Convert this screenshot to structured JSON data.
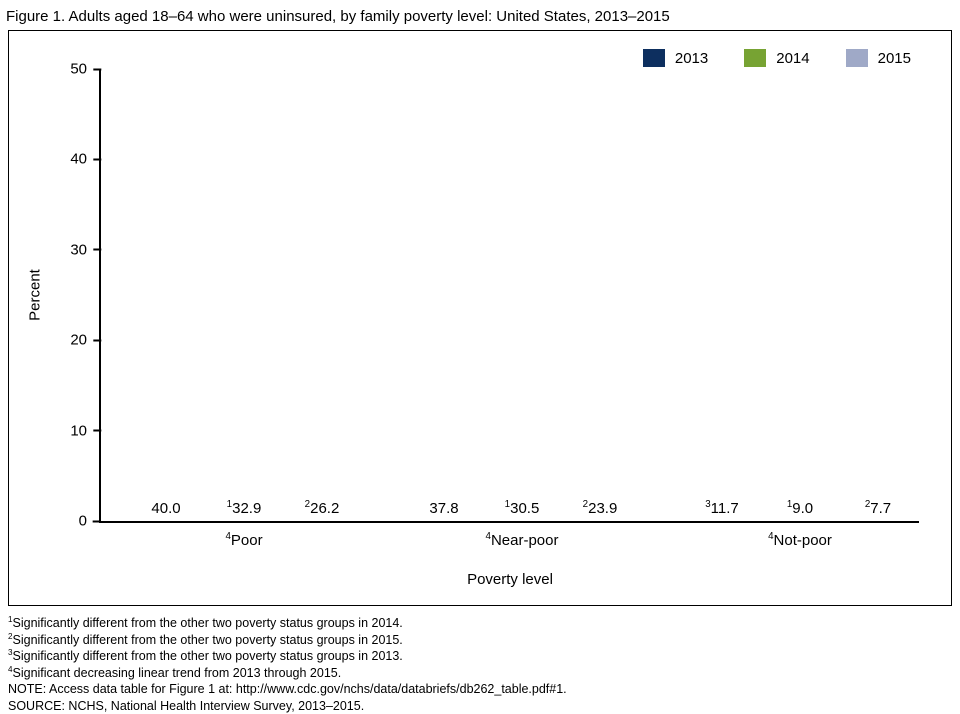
{
  "title": "Figure 1. Adults aged 18–64 who were uninsured, by family poverty level: United States, 2013–2015",
  "chart_data": {
    "type": "bar",
    "title": "Adults aged 18–64 who were uninsured, by family poverty level: United States, 2013–2015",
    "categories": [
      "Poor",
      "Near-poor",
      "Not-poor"
    ],
    "category_footnotes": [
      "4",
      "4",
      "4"
    ],
    "series": [
      {
        "name": "2013",
        "color": "#0d2f5f",
        "values": [
          40.0,
          37.8,
          11.7
        ],
        "value_footnotes": [
          "",
          "",
          "3"
        ]
      },
      {
        "name": "2014",
        "color": "#77a333",
        "values": [
          32.9,
          30.5,
          9.0
        ],
        "value_footnotes": [
          "1",
          "1",
          "1"
        ]
      },
      {
        "name": "2015",
        "color": "#9fa9c7",
        "values": [
          26.2,
          23.9,
          7.7
        ],
        "value_footnotes": [
          "2",
          "2",
          "2"
        ]
      }
    ],
    "xlabel": "Poverty level",
    "ylabel": "Percent",
    "ylim": [
      0,
      50
    ],
    "yticks": [
      0,
      10,
      20,
      30,
      40,
      50
    ],
    "grid": false,
    "legend_position": "top-right"
  },
  "footnotes": [
    {
      "sup": "1",
      "text": "Significantly different from the other two poverty status groups in 2014."
    },
    {
      "sup": "2",
      "text": "Significantly different from the other two poverty status groups in 2015."
    },
    {
      "sup": "3",
      "text": "Significantly different from the other two poverty status groups in 2013."
    },
    {
      "sup": "4",
      "text": "Significant decreasing linear trend from 2013 through 2015."
    },
    {
      "sup": "",
      "text": "NOTE: Access data table for Figure 1 at: http://www.cdc.gov/nchs/data/databriefs/db262_table.pdf#1."
    },
    {
      "sup": "",
      "text": "SOURCE: NCHS, National Health Interview Survey, 2013–2015."
    }
  ]
}
